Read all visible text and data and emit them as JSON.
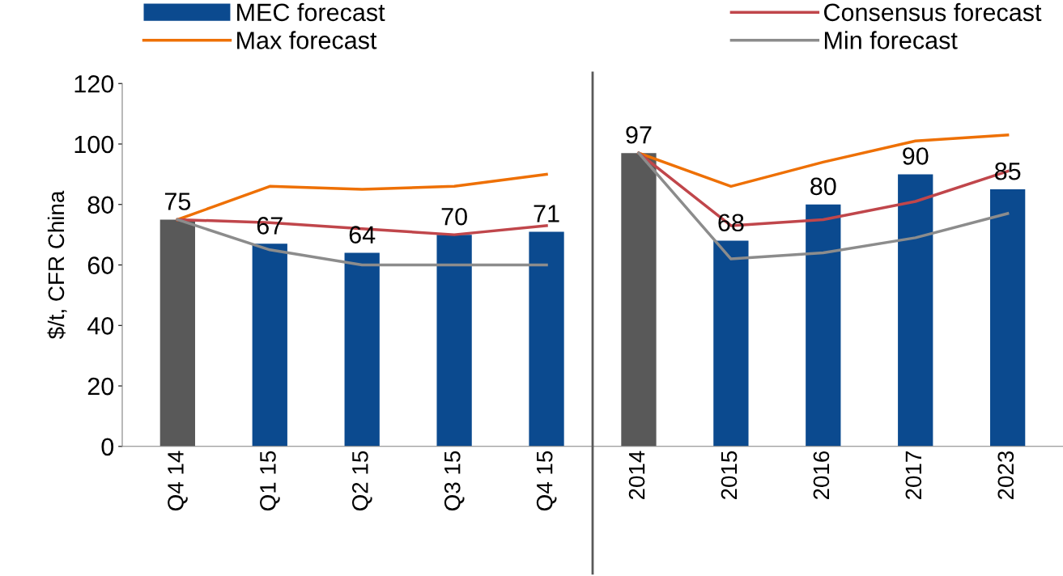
{
  "chart_data": {
    "type": "bar",
    "ylabel": "$/t, CFR China",
    "categories": [
      "Q4 14",
      "Q1 15",
      "Q2 15",
      "Q3 15",
      "Q4 15",
      "2014",
      "2015",
      "2016",
      "2017",
      "2023"
    ],
    "ylim": [
      0,
      120
    ],
    "yticks": [
      0,
      20,
      40,
      60,
      80,
      100,
      120
    ],
    "grid": false,
    "legend": "top",
    "series": [
      {
        "name": "MEC forecast",
        "color": "#0b4a8f",
        "colors": [
          "#595959",
          "#0b4a8f",
          "#0b4a8f",
          "#0b4a8f",
          "#0b4a8f",
          "#595959",
          "#0b4a8f",
          "#0b4a8f",
          "#0b4a8f",
          "#0b4a8f"
        ],
        "values": [
          75,
          67,
          64,
          70,
          71,
          97,
          68,
          80,
          90,
          85
        ],
        "value_labels": [
          "75",
          "67",
          "64",
          "70",
          "71",
          "97",
          "68",
          "80",
          "90",
          "85"
        ]
      },
      {
        "name": "Max forecast",
        "type": "line",
        "color": "#ee7004",
        "values": [
          75,
          86,
          85,
          86,
          90,
          null,
          null,
          null,
          null,
          null
        ]
      },
      {
        "type": "line",
        "color": "#ee7004",
        "values": [
          null,
          null,
          null,
          null,
          null,
          97,
          86,
          94,
          101,
          103
        ]
      },
      {
        "name": "Consensus forecast",
        "type": "line",
        "color": "#c0464b",
        "values": [
          75,
          74,
          72,
          70,
          73,
          null,
          null,
          null,
          null,
          null
        ]
      },
      {
        "type": "line",
        "color": "#c0464b",
        "values": [
          null,
          null,
          null,
          null,
          null,
          97,
          73,
          75,
          81,
          91
        ]
      },
      {
        "name": "Min forecast",
        "type": "line",
        "color": "#8c8c8c",
        "values": [
          75,
          65,
          60,
          60,
          60,
          null,
          null,
          null,
          null,
          null
        ]
      },
      {
        "type": "line",
        "color": "#8c8c8c",
        "values": [
          null,
          null,
          null,
          null,
          null,
          97,
          62,
          64,
          69,
          77
        ]
      }
    ]
  }
}
